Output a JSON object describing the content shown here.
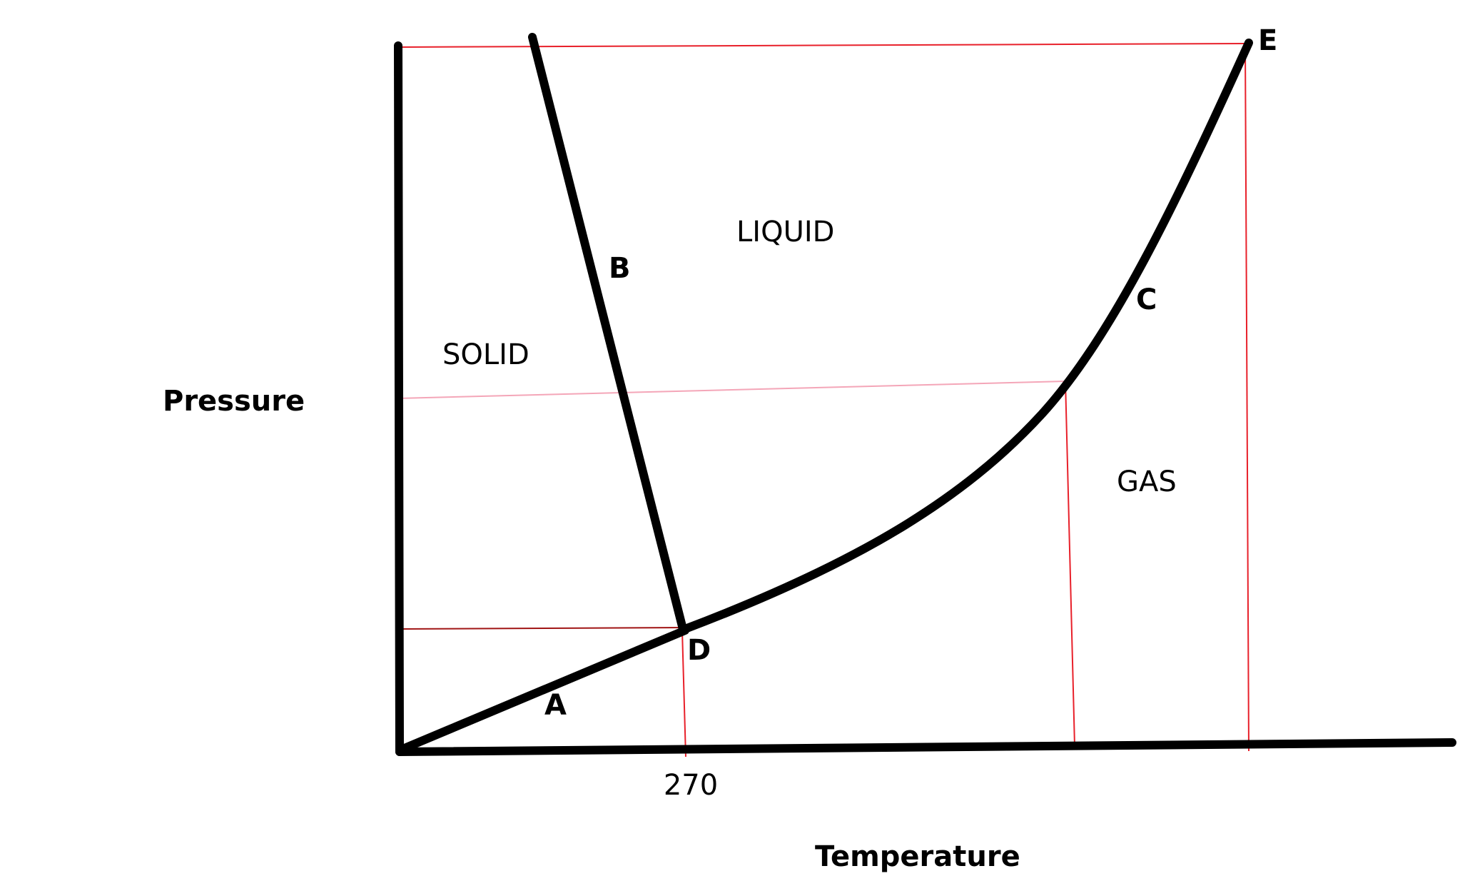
{
  "axes": {
    "y_label": "Pressure",
    "x_label": "Temperature",
    "x_tick": "270"
  },
  "regions": {
    "solid": "SOLID",
    "liquid": "LIQUID",
    "gas": "GAS"
  },
  "points": {
    "a": "A",
    "b": "B",
    "c": "C",
    "d": "D",
    "e": "E"
  },
  "colors": {
    "curve": "#000000",
    "guide_line": "#e8202a",
    "pressure_guide": "#f4a6b8"
  }
}
